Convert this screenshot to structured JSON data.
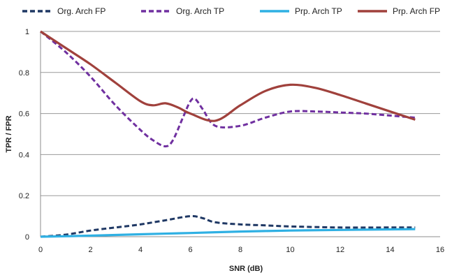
{
  "chart_data": {
    "type": "line",
    "title": "",
    "xlabel": "SNR (dB)",
    "ylabel": "TPR / FPR",
    "xlim": [
      0,
      16
    ],
    "ylim": [
      0,
      1
    ],
    "x_ticks": [
      0,
      2,
      4,
      6,
      8,
      10,
      12,
      14,
      16
    ],
    "y_ticks": [
      0,
      0.2,
      0.4,
      0.6,
      0.8,
      1
    ],
    "x_tick_labels": [
      "0",
      "2",
      "4",
      "6",
      "8",
      "10",
      "12",
      "14",
      "16"
    ],
    "y_tick_labels": [
      "0",
      "0.2",
      "0.4",
      "0.6",
      "0.8",
      "1"
    ],
    "grid": "horizontal",
    "legend_position": "top",
    "series": [
      {
        "name": "Org. Arch FP",
        "color": "#1f3864",
        "style": "dashed",
        "points": [
          [
            0,
            0
          ],
          [
            1,
            0.01
          ],
          [
            2,
            0.03
          ],
          [
            3,
            0.045
          ],
          [
            4,
            0.06
          ],
          [
            5,
            0.08
          ],
          [
            6,
            0.1
          ],
          [
            6.5,
            0.09
          ],
          [
            7,
            0.07
          ],
          [
            8,
            0.06
          ],
          [
            9,
            0.055
          ],
          [
            10,
            0.05
          ],
          [
            12,
            0.045
          ],
          [
            14,
            0.045
          ],
          [
            15,
            0.045
          ]
        ]
      },
      {
        "name": "Org. Arch TP",
        "color": "#7030a0",
        "style": "dashed",
        "points": [
          [
            0,
            1
          ],
          [
            1,
            0.9
          ],
          [
            2,
            0.78
          ],
          [
            3,
            0.64
          ],
          [
            4,
            0.52
          ],
          [
            4.5,
            0.47
          ],
          [
            5,
            0.44
          ],
          [
            5.3,
            0.47
          ],
          [
            5.7,
            0.58
          ],
          [
            6,
            0.66
          ],
          [
            6.2,
            0.67
          ],
          [
            6.5,
            0.62
          ],
          [
            7,
            0.54
          ],
          [
            8,
            0.54
          ],
          [
            9,
            0.58
          ],
          [
            10,
            0.61
          ],
          [
            11,
            0.61
          ],
          [
            12,
            0.605
          ],
          [
            13,
            0.6
          ],
          [
            14,
            0.59
          ],
          [
            15,
            0.58
          ]
        ]
      },
      {
        "name": "Prp. Arch TP",
        "color": "#2fb0e3",
        "style": "solid",
        "points": [
          [
            0,
            0
          ],
          [
            2,
            0.005
          ],
          [
            4,
            0.012
          ],
          [
            6,
            0.018
          ],
          [
            8,
            0.025
          ],
          [
            10,
            0.03
          ],
          [
            12,
            0.033
          ],
          [
            15,
            0.037
          ]
        ]
      },
      {
        "name": "Prp. Arch FP",
        "color": "#a0413c",
        "style": "solid",
        "points": [
          [
            0,
            1
          ],
          [
            1,
            0.92
          ],
          [
            2,
            0.84
          ],
          [
            3,
            0.75
          ],
          [
            4,
            0.66
          ],
          [
            4.5,
            0.64
          ],
          [
            5,
            0.65
          ],
          [
            5.5,
            0.63
          ],
          [
            6,
            0.6
          ],
          [
            7,
            0.565
          ],
          [
            8,
            0.64
          ],
          [
            9,
            0.71
          ],
          [
            10,
            0.74
          ],
          [
            11,
            0.725
          ],
          [
            12,
            0.69
          ],
          [
            13,
            0.65
          ],
          [
            14,
            0.61
          ],
          [
            15,
            0.57
          ]
        ]
      }
    ]
  }
}
